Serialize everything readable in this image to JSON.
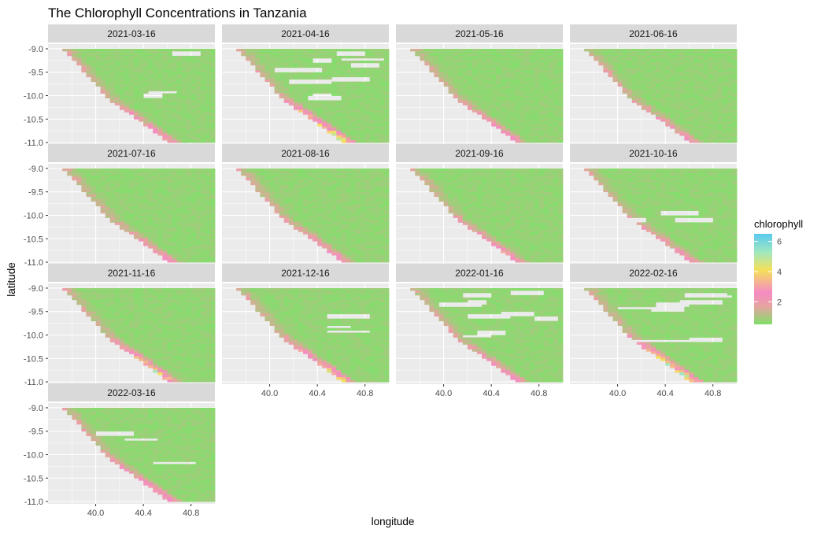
{
  "chart_data": {
    "type": "heatmap",
    "title": "The Chlorophyll Concentrations in Tanzania",
    "xlabel": "longitude",
    "ylabel": "latitude",
    "xlim": [
      39.6,
      41.0
    ],
    "ylim": [
      -11.05,
      -8.9
    ],
    "x_ticks": [
      "40.0",
      "40.4",
      "40.8"
    ],
    "y_ticks": [
      "-9.0",
      "-9.5",
      "-10.0",
      "-10.5",
      "-11.0"
    ],
    "panels": [
      {
        "label": "2021-03-16",
        "nearshore_peak": 2.2,
        "gaps": "few"
      },
      {
        "label": "2021-04-16",
        "nearshore_peak": 4.2,
        "gaps": "many"
      },
      {
        "label": "2021-05-16",
        "nearshore_peak": 1.8,
        "gaps": "none"
      },
      {
        "label": "2021-06-16",
        "nearshore_peak": 1.7,
        "gaps": "none"
      },
      {
        "label": "2021-07-16",
        "nearshore_peak": 1.8,
        "gaps": "none"
      },
      {
        "label": "2021-08-16",
        "nearshore_peak": 1.8,
        "gaps": "none"
      },
      {
        "label": "2021-09-16",
        "nearshore_peak": 1.9,
        "gaps": "none"
      },
      {
        "label": "2021-10-16",
        "nearshore_peak": 1.8,
        "gaps": "few"
      },
      {
        "label": "2021-11-16",
        "nearshore_peak": 3.5,
        "gaps": "none"
      },
      {
        "label": "2021-12-16",
        "nearshore_peak": 3.2,
        "gaps": "few"
      },
      {
        "label": "2022-01-16",
        "nearshore_peak": 1.9,
        "gaps": "many"
      },
      {
        "label": "2022-02-16",
        "nearshore_peak": 4.5,
        "gaps": "many"
      },
      {
        "label": "2022-03-16",
        "nearshore_peak": 2.3,
        "gaps": "few"
      }
    ],
    "legend": {
      "title": "chlorophyll",
      "breaks": [
        "2",
        "4",
        "6"
      ],
      "range": [
        0.5,
        6.5
      ],
      "colors": [
        "#7FE06A",
        "#F58AC4",
        "#F5E05A",
        "#5BC9F0"
      ],
      "placement": "right"
    },
    "background": "#EBEBEB",
    "grid": true
  }
}
